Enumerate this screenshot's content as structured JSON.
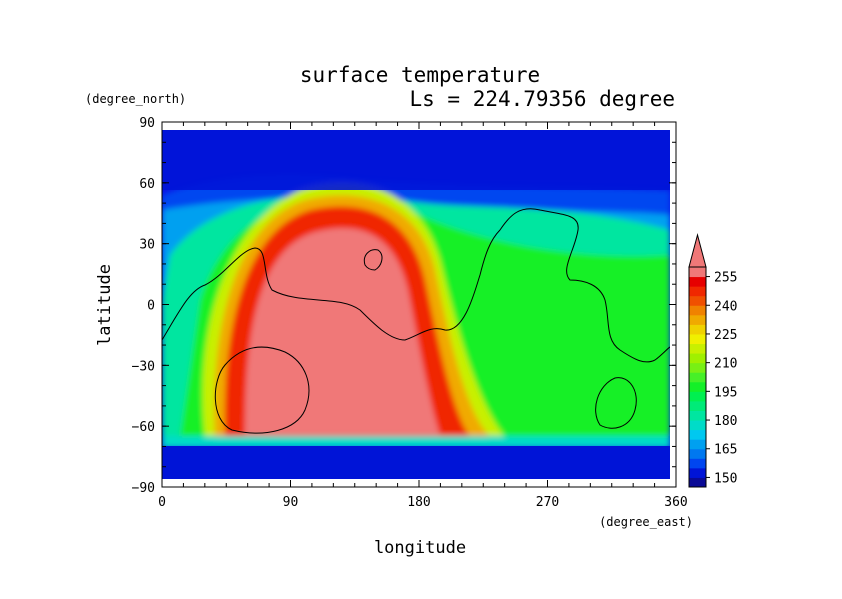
{
  "chart_data": {
    "type": "heatmap",
    "title": "surface temperature",
    "subtitle": "Ls = 224.79356 degree",
    "xlabel": "longitude",
    "ylabel": "latitude",
    "x_unit": "(degree_east)",
    "y_unit": "(degree_north)",
    "xlim": [
      0,
      360
    ],
    "ylim": [
      -90,
      90
    ],
    "x_ticks": [
      "0",
      "90",
      "180",
      "270",
      "360"
    ],
    "y_ticks": [
      "90",
      "60",
      "30",
      "0",
      "−30",
      "−60",
      "−90"
    ],
    "colorbar": {
      "labels": [
        "255",
        "240",
        "225",
        "210",
        "195",
        "180",
        "165",
        "150"
      ],
      "levels": [
        145,
        150,
        155,
        160,
        165,
        170,
        175,
        180,
        185,
        190,
        195,
        200,
        205,
        210,
        215,
        220,
        225,
        230,
        235,
        240,
        245,
        250,
        255,
        260
      ],
      "colors": [
        "#0a0a96",
        "#0014d7",
        "#0046f0",
        "#0078f0",
        "#00a0f0",
        "#00c8f0",
        "#00dcc8",
        "#00e6a0",
        "#00eb78",
        "#00f050",
        "#14f028",
        "#46f028",
        "#78f014",
        "#a0f000",
        "#c8f000",
        "#f0f000",
        "#f0d200",
        "#f0aa00",
        "#f08200",
        "#f05000",
        "#f02800",
        "#e60000",
        "#f07878"
      ],
      "overflow_color": "#f07878"
    },
    "warm_region_max_temp": 255,
    "polar_cap_temp": 145
  }
}
